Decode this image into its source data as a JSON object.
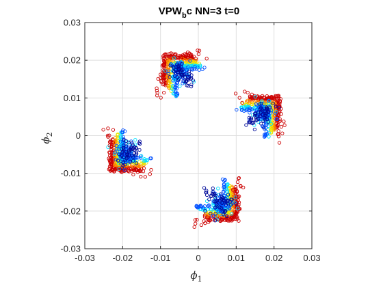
{
  "chart_data": {
    "type": "scatter",
    "title": "VPW",
    "title_subscript": "b",
    "title_rest": "c NN=3 t=0",
    "xlabel": "ϕ",
    "xlabel_sub": "1",
    "ylabel": "ϕ",
    "ylabel_sub": "2",
    "xlim": [
      -0.03,
      0.03
    ],
    "ylim": [
      -0.03,
      0.03
    ],
    "xticks": [
      -0.03,
      -0.02,
      -0.01,
      0,
      0.01,
      0.02,
      0.03
    ],
    "yticks": [
      -0.03,
      -0.02,
      -0.01,
      0,
      0.01,
      0.02,
      0.03
    ],
    "xtick_labels": [
      "-0.03",
      "-0.02",
      "-0.01",
      "0",
      "0.01",
      "0.02",
      "0.03"
    ],
    "ytick_labels": [
      "-0.03",
      "-0.02",
      "-0.01",
      "0",
      "0.01",
      "0.02",
      "0.03"
    ],
    "grid": true,
    "marker": "open-circle",
    "colormap": "jet",
    "clusters": [
      {
        "center": [
          -0.005,
          0.017
        ],
        "arm_dir": [
          -1,
          1
        ]
      },
      {
        "center": [
          0.017,
          0.006
        ],
        "arm_dir": [
          1,
          1
        ]
      },
      {
        "center": [
          0.006,
          -0.018
        ],
        "arm_dir": [
          1,
          -1
        ]
      },
      {
        "center": [
          -0.019,
          -0.005
        ],
        "arm_dir": [
          -1,
          -1
        ]
      }
    ],
    "colors": {
      "outer": "#cc0000",
      "orange": "#ff8800",
      "yellow": "#e8e800",
      "cyan": "#00e0ff",
      "blue": "#0050ff",
      "core": "#000a9a"
    }
  }
}
